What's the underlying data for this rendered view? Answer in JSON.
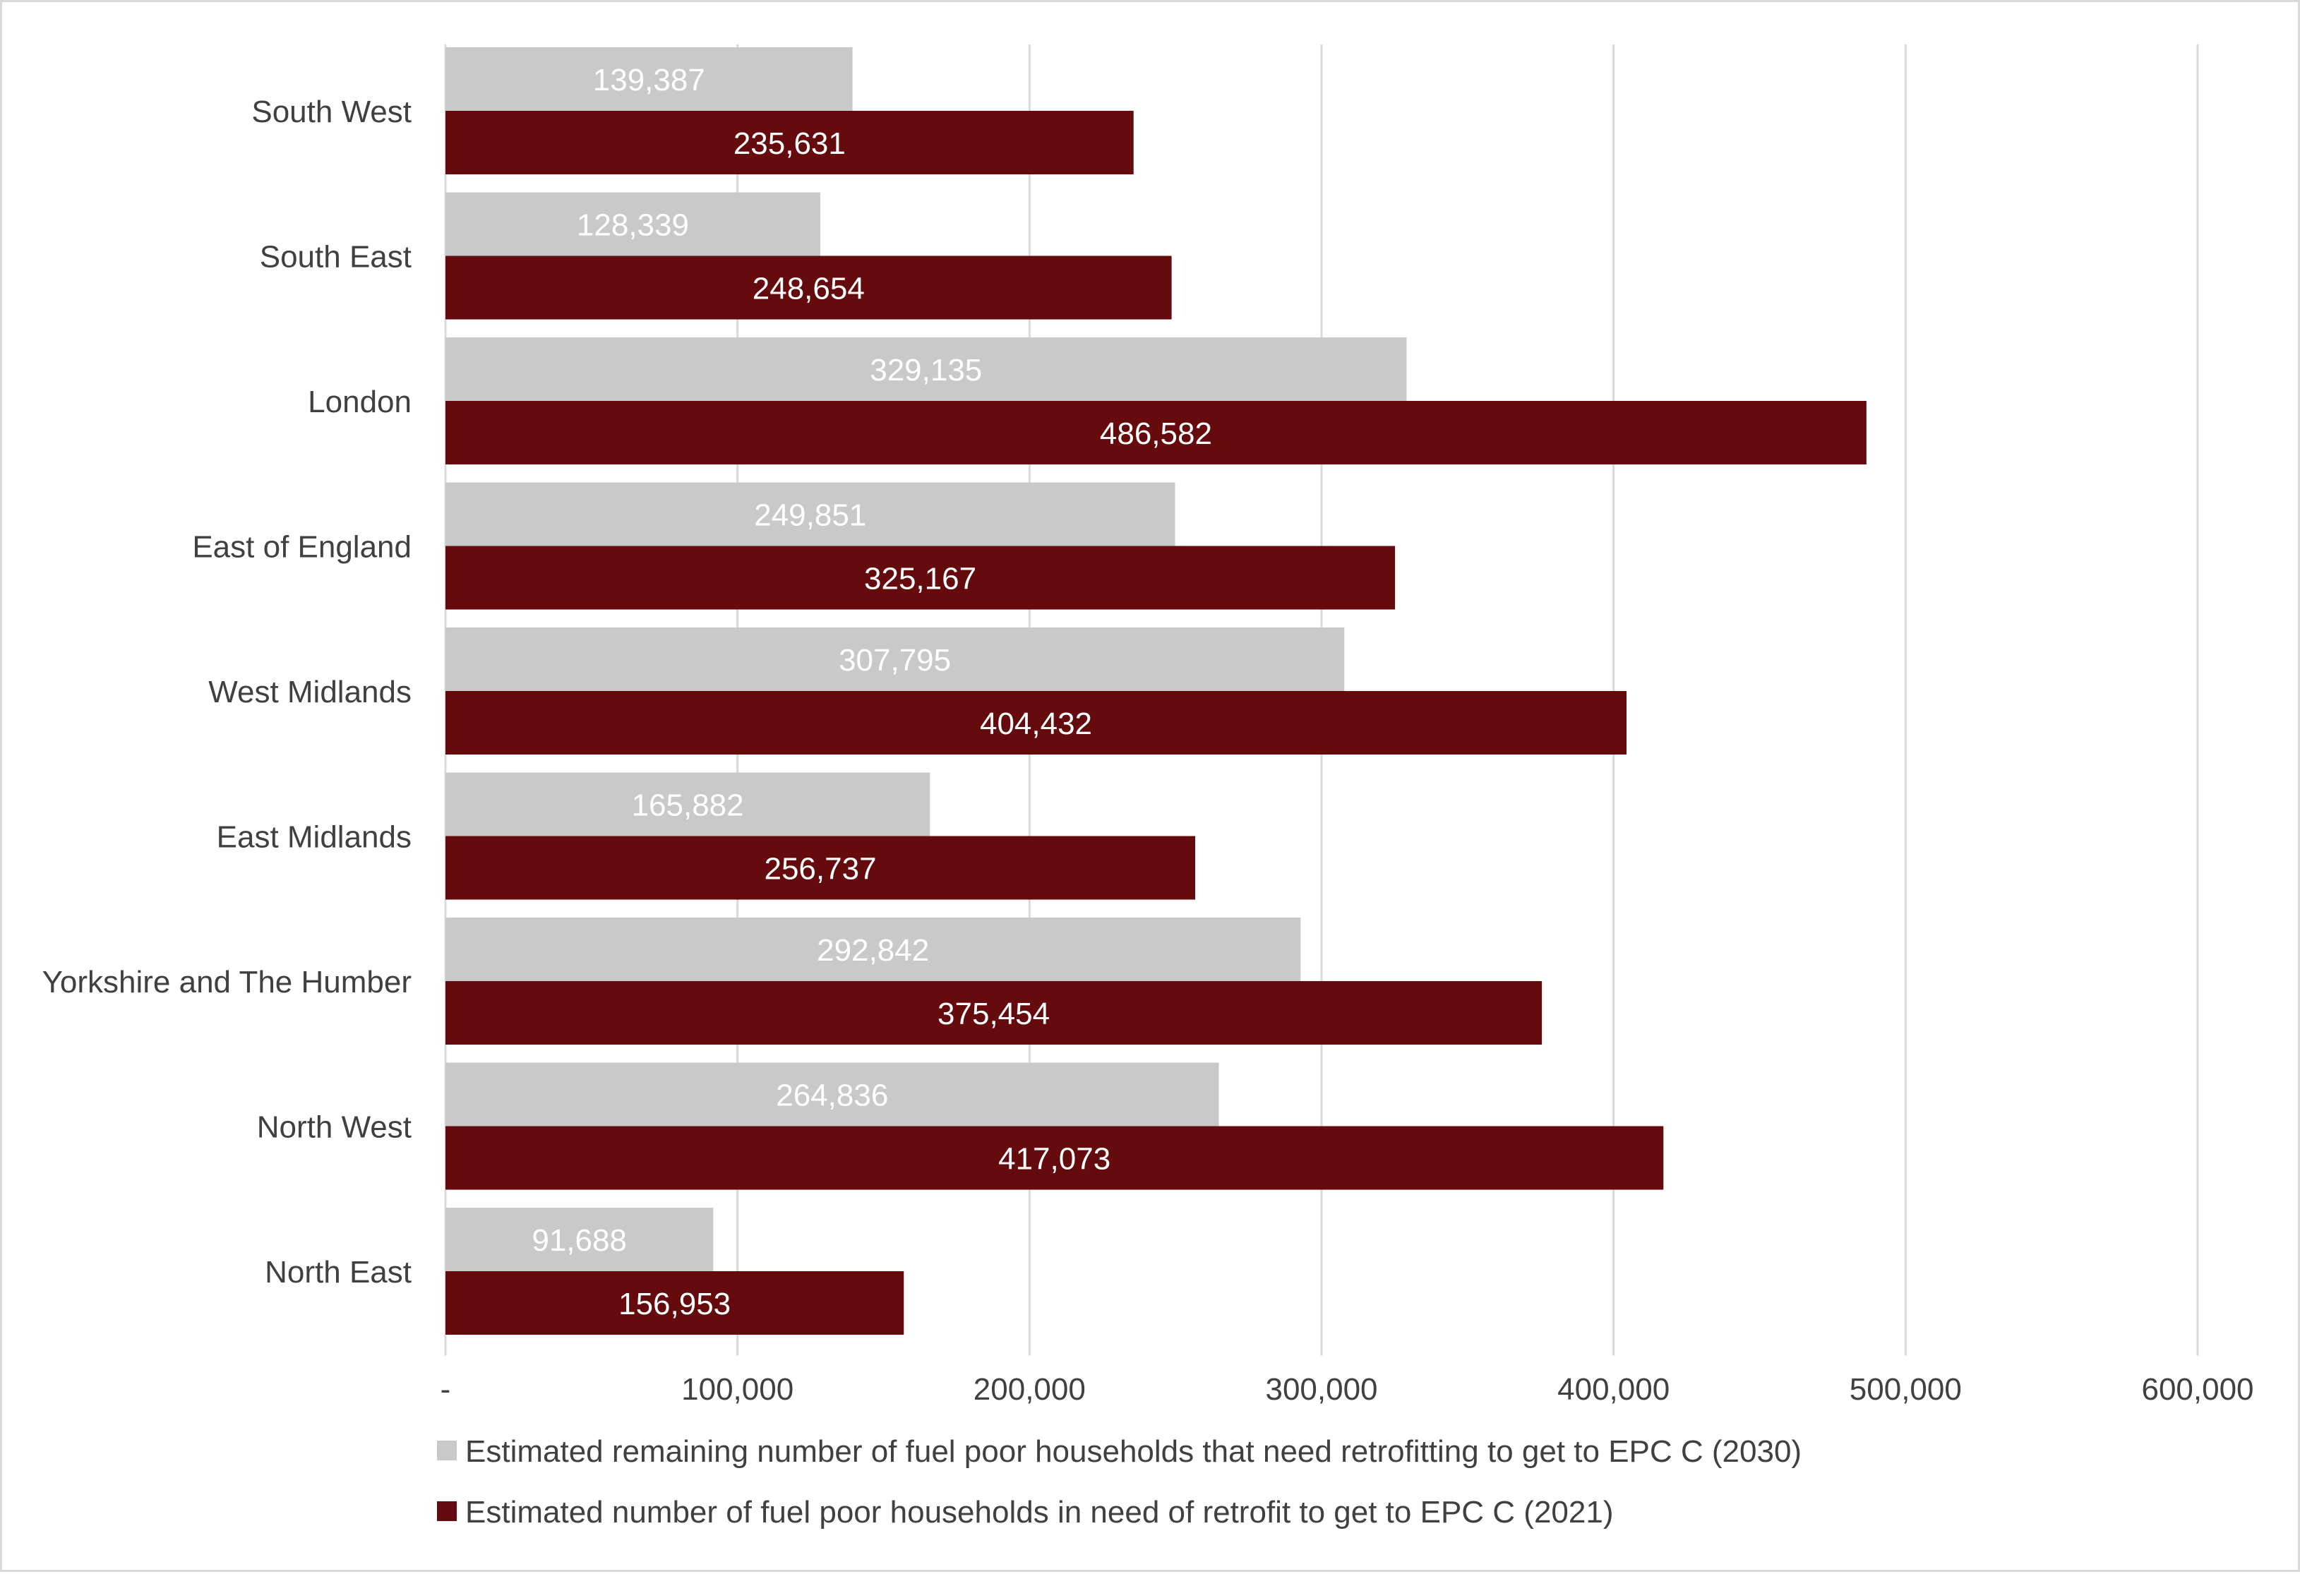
{
  "chart_data": {
    "type": "bar",
    "orientation": "horizontal",
    "categories": [
      "South West",
      "South East",
      "London",
      "East of England",
      "West Midlands",
      "East Midlands",
      "Yorkshire and The Humber",
      "North West",
      "North East"
    ],
    "series": [
      {
        "name": "Estimated remaining number of fuel poor households that need retrofitting to get to EPC C (2030)",
        "color": "#c9c9c9",
        "label_color": "#ffffff",
        "values": [
          139387,
          128339,
          329135,
          249851,
          307795,
          165882,
          292842,
          264836,
          91688
        ],
        "labels": [
          "139,387",
          "128,339",
          "329,135",
          "249,851",
          "307,795",
          "165,882",
          "292,842",
          "264,836",
          "91,688"
        ]
      },
      {
        "name": "Estimated number of fuel poor households in need of retrofit to get to EPC C (2021)",
        "color": "#650a0d",
        "label_color": "#ffffff",
        "values": [
          235631,
          248654,
          486582,
          325167,
          404432,
          256737,
          375454,
          417073,
          156953
        ],
        "labels": [
          "235,631",
          "248,654",
          "486,582",
          "325,167",
          "404,432",
          "256,737",
          "375,454",
          "417,073",
          "156,953"
        ]
      }
    ],
    "xlim": [
      0,
      600000
    ],
    "x_ticks": [
      0,
      100000,
      200000,
      300000,
      400000,
      500000,
      600000
    ],
    "x_tick_labels": [
      "-",
      "100,000",
      "200,000",
      "300,000",
      "400,000",
      "500,000",
      "600,000"
    ],
    "gridlines": true,
    "gridline_color": "#d9d9d9",
    "legend_position": "bottom",
    "title": "",
    "xlabel": "",
    "ylabel": ""
  }
}
